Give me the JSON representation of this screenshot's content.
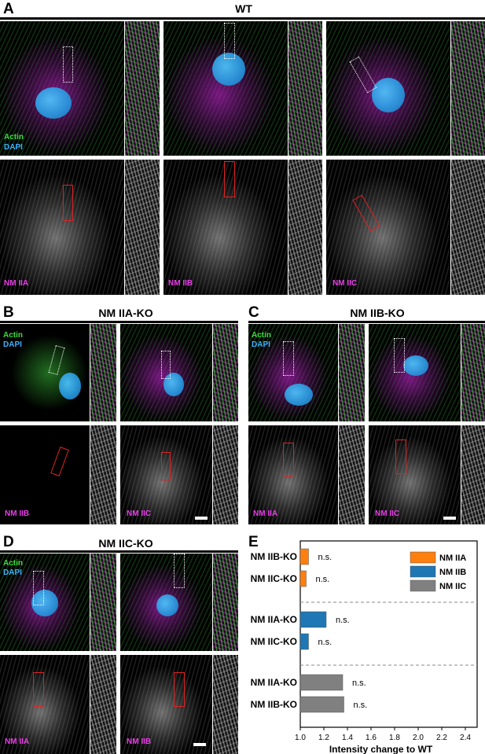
{
  "colors": {
    "actin": "#3ddc3d",
    "dapi": "#3bb3ff",
    "nm_label": "#e83ee8",
    "nm_iia": "#ff7f0e",
    "nm_iib": "#1f77b4",
    "nm_iic": "#808080"
  },
  "panels": {
    "a": {
      "letter": "A",
      "title": "WT",
      "stain_actin": "Actin",
      "stain_dapi": "DAPI",
      "labels": [
        "NM IIA",
        "NM IIB",
        "NM IIC"
      ]
    },
    "b": {
      "letter": "B",
      "title": "NM IIA-KO",
      "stain_actin": "Actin",
      "stain_dapi": "DAPI",
      "labels": [
        "NM IIB",
        "NM IIC"
      ]
    },
    "c": {
      "letter": "C",
      "title": "NM IIB-KO",
      "stain_actin": "Actin",
      "stain_dapi": "DAPI",
      "labels": [
        "NM IIA",
        "NM IIC"
      ]
    },
    "d": {
      "letter": "D",
      "title": "NM IIC-KO",
      "stain_actin": "Actin",
      "stain_dapi": "DAPI",
      "labels": [
        "NM IIA",
        "NM IIB"
      ]
    },
    "e": {
      "letter": "E"
    }
  },
  "chart_data": {
    "type": "bar",
    "orientation": "horizontal",
    "xlabel": "Intensity change to WT",
    "xlim": [
      1.0,
      2.5
    ],
    "xticks": [
      "1.0",
      "1.2",
      "1.4",
      "1.6",
      "1.8",
      "2.0",
      "2.2",
      "2.4"
    ],
    "legend": {
      "placement": "top-right",
      "entries": [
        "NM IIA",
        "NM IIB",
        "NM IIC"
      ]
    },
    "groups": [
      {
        "series": "NM IIA",
        "bars": [
          {
            "label": "NM IIB-KO",
            "value": 1.07,
            "annotation": "n.s."
          },
          {
            "label": "NM IIC-KO",
            "value": 1.05,
            "annotation": "n.s."
          }
        ]
      },
      {
        "series": "NM IIB",
        "bars": [
          {
            "label": "NM IIA-KO",
            "value": 1.22,
            "annotation": "n.s."
          },
          {
            "label": "NM IIC-KO",
            "value": 1.07,
            "annotation": "n.s."
          }
        ]
      },
      {
        "series": "NM IIC",
        "bars": [
          {
            "label": "NM IIA-KO",
            "value": 1.36,
            "annotation": "n.s."
          },
          {
            "label": "NM IIB-KO",
            "value": 1.37,
            "annotation": "n.s."
          }
        ]
      }
    ]
  }
}
